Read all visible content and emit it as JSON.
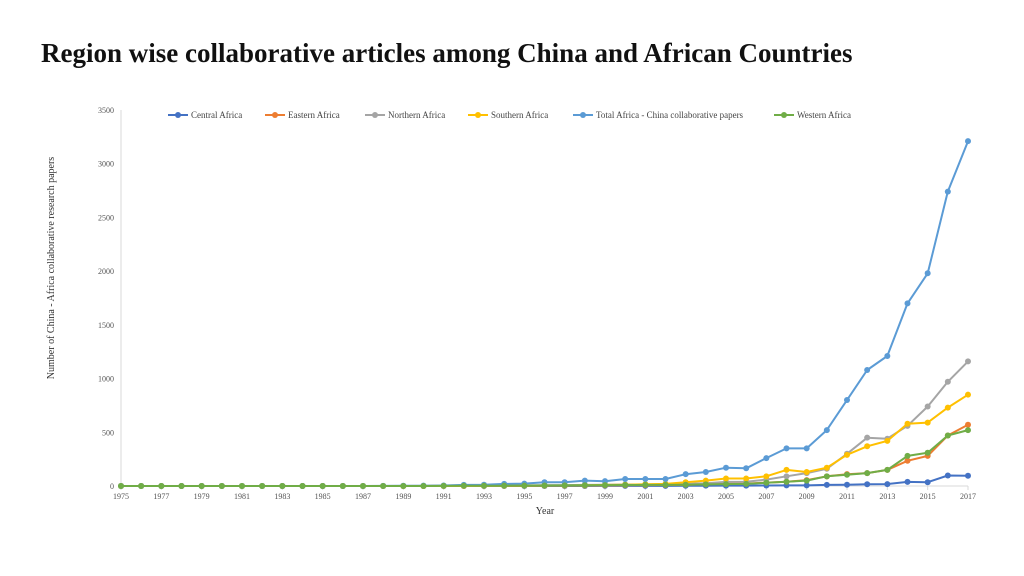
{
  "slide": {
    "title": "Region wise collaborative articles among China and African Countries"
  },
  "chart_data": {
    "type": "line",
    "title": "",
    "xlabel": "Year",
    "ylabel": "Number of  China - Africa collaborative research papers",
    "ylim": [
      0,
      3500
    ],
    "y_ticks": [
      0,
      500,
      1000,
      1500,
      2000,
      2500,
      3000,
      3500
    ],
    "x_tick_labels": [
      "1975",
      "1977",
      "1979",
      "1981",
      "1983",
      "1985",
      "1987",
      "1989",
      "1991",
      "1993",
      "1995",
      "1997",
      "1999",
      "2001",
      "2003",
      "2005",
      "2007",
      "2009",
      "2011",
      "2013",
      "2015",
      "2017"
    ],
    "grid": false,
    "legend_position": "top",
    "x": [
      1975,
      1976,
      1977,
      1978,
      1979,
      1980,
      1981,
      1982,
      1983,
      1984,
      1985,
      1986,
      1987,
      1988,
      1989,
      1990,
      1991,
      1992,
      1993,
      1994,
      1995,
      1996,
      1997,
      1998,
      1999,
      2000,
      2001,
      2002,
      2003,
      2004,
      2005,
      2006,
      2007,
      2008,
      2009,
      2010,
      2011,
      2012,
      2013,
      2014,
      2015,
      2016,
      2017
    ],
    "series": [
      {
        "name": "Central Africa",
        "color": "#4472C4",
        "values": [
          0,
          0,
          0,
          0,
          0,
          0,
          0,
          0,
          0,
          0,
          0,
          0,
          0,
          0,
          0,
          0,
          0,
          0,
          0,
          0,
          0,
          0,
          0,
          0,
          1,
          1,
          1,
          1,
          2,
          3,
          4,
          4,
          5,
          6,
          6,
          10,
          12,
          16,
          18,
          38,
          35,
          98,
          95
        ]
      },
      {
        "name": "Eastern Africa",
        "color": "#ED7D31",
        "values": [
          0,
          0,
          0,
          0,
          0,
          0,
          0,
          0,
          0,
          0,
          0,
          0,
          0,
          0,
          0,
          0,
          1,
          1,
          2,
          2,
          3,
          4,
          4,
          5,
          6,
          7,
          8,
          9,
          12,
          16,
          22,
          22,
          32,
          40,
          55,
          90,
          110,
          120,
          150,
          235,
          280,
          470,
          570
        ]
      },
      {
        "name": "Northern Africa",
        "color": "#A5A5A5",
        "values": [
          0,
          0,
          0,
          0,
          0,
          0,
          0,
          0,
          0,
          0,
          0,
          0,
          0,
          0,
          0,
          1,
          2,
          3,
          4,
          4,
          6,
          8,
          8,
          10,
          12,
          14,
          14,
          14,
          20,
          26,
          38,
          40,
          60,
          90,
          120,
          160,
          300,
          450,
          440,
          560,
          740,
          970,
          1160
        ]
      },
      {
        "name": "Southern Africa",
        "color": "#FFC000",
        "values": [
          0,
          0,
          0,
          0,
          0,
          0,
          0,
          0,
          0,
          0,
          0,
          0,
          0,
          0,
          0,
          0,
          1,
          1,
          2,
          2,
          3,
          4,
          5,
          6,
          10,
          12,
          16,
          20,
          35,
          50,
          70,
          70,
          90,
          150,
          130,
          170,
          290,
          370,
          420,
          580,
          590,
          730,
          850
        ]
      },
      {
        "name": "Total Africa - China collaborative papers",
        "color": "#5B9BD5",
        "values": [
          0,
          0,
          0,
          0,
          0,
          0,
          0,
          0,
          0,
          0,
          0,
          0,
          0,
          1,
          2,
          3,
          5,
          10,
          12,
          20,
          22,
          35,
          35,
          50,
          45,
          65,
          65,
          65,
          110,
          130,
          170,
          165,
          260,
          350,
          350,
          520,
          800,
          1080,
          1210,
          1700,
          1980,
          2740,
          3210
        ]
      },
      {
        "name": "Western Africa",
        "color": "#70AD47",
        "values": [
          0,
          0,
          0,
          0,
          0,
          0,
          0,
          0,
          0,
          0,
          0,
          0,
          0,
          0,
          0,
          0,
          1,
          2,
          2,
          3,
          4,
          5,
          6,
          7,
          8,
          9,
          10,
          10,
          12,
          15,
          18,
          20,
          30,
          40,
          50,
          90,
          105,
          120,
          150,
          280,
          310,
          470,
          520
        ]
      }
    ]
  }
}
